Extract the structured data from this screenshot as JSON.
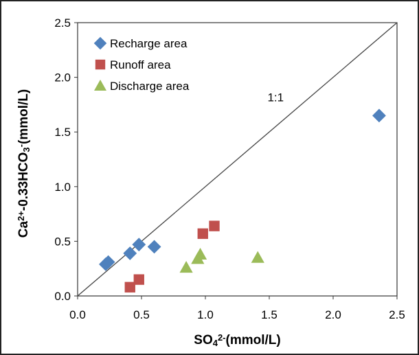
{
  "chart_data": {
    "type": "scatter",
    "title": "",
    "xlabel_parts": [
      {
        "text": "SO",
        "style": "normal"
      },
      {
        "text": "4",
        "style": "sub"
      },
      {
        "text": "2-",
        "style": "sup"
      },
      {
        "text": "(mmol/L)",
        "style": "normal"
      }
    ],
    "ylabel_parts": [
      {
        "text": "Ca",
        "style": "normal"
      },
      {
        "text": "2+",
        "style": "sup"
      },
      {
        "text": "-0.33HCO",
        "style": "normal"
      },
      {
        "text": "3",
        "style": "sub"
      },
      {
        "text": "-",
        "style": "sup"
      },
      {
        "text": "(mmol/L)",
        "style": "normal"
      }
    ],
    "xlim": [
      0,
      2.5
    ],
    "ylim": [
      0,
      2.5
    ],
    "x_ticks": [
      "0.0",
      "0.5",
      "1.0",
      "1.5",
      "2.0",
      "2.5"
    ],
    "y_ticks": [
      "0.0",
      "0.5",
      "1.0",
      "1.5",
      "2.0",
      "2.5"
    ],
    "grid": false,
    "legend_placement": "top-left",
    "reference_line": {
      "label": "1:1",
      "from": [
        0,
        0
      ],
      "to": [
        2.5,
        2.5
      ],
      "label_pos": [
        1.55,
        1.78
      ]
    },
    "series": [
      {
        "name": "Recharge area",
        "marker": "diamond",
        "color": "#4F81BD",
        "points": [
          [
            0.22,
            0.29
          ],
          [
            0.24,
            0.31
          ],
          [
            0.41,
            0.39
          ],
          [
            0.48,
            0.47
          ],
          [
            0.6,
            0.45
          ],
          [
            2.36,
            1.65
          ]
        ]
      },
      {
        "name": "Runoff area",
        "marker": "square",
        "color": "#C0504D",
        "points": [
          [
            0.41,
            0.08
          ],
          [
            0.48,
            0.15
          ],
          [
            0.98,
            0.57
          ],
          [
            1.07,
            0.64
          ]
        ]
      },
      {
        "name": "Discharge area",
        "marker": "triangle",
        "color": "#9BBB59",
        "points": [
          [
            0.85,
            0.26
          ],
          [
            0.94,
            0.34
          ],
          [
            0.96,
            0.38
          ],
          [
            1.41,
            0.35
          ]
        ]
      }
    ]
  }
}
